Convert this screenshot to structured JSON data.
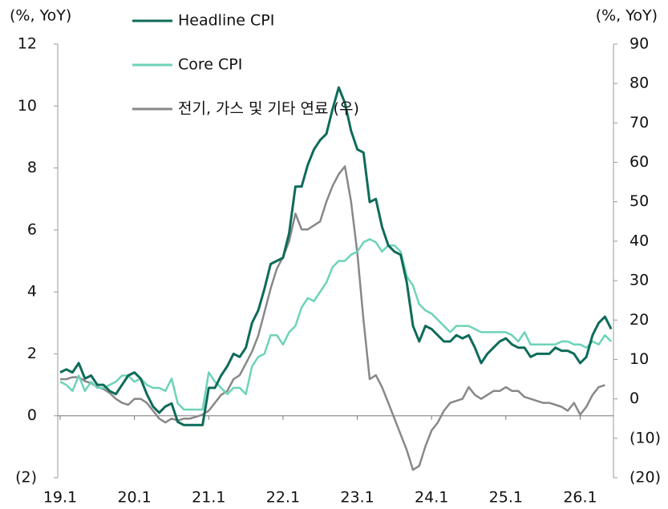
{
  "chart_data": {
    "type": "line",
    "y_axis_label": "(%, YoY)",
    "y2_axis_label": "(%, YoY)",
    "categories": [
      "19.1",
      null,
      null,
      null,
      null,
      null,
      null,
      null,
      null,
      null,
      null,
      null,
      "20.1",
      null,
      null,
      null,
      null,
      null,
      null,
      null,
      null,
      null,
      null,
      null,
      "21.1",
      null,
      null,
      null,
      null,
      null,
      null,
      null,
      null,
      null,
      null,
      null,
      "22.1",
      null,
      null,
      null,
      null,
      null,
      null,
      null,
      null,
      null,
      null,
      null,
      "23.1",
      null,
      null,
      null,
      null,
      null,
      null,
      null,
      null,
      null,
      null,
      null,
      "24.1",
      null,
      null,
      null,
      null,
      null,
      null,
      null,
      null,
      null,
      null,
      null,
      "25.1",
      null,
      null,
      null,
      null,
      null,
      null,
      null,
      null,
      null,
      null,
      null,
      "26.1",
      null,
      null,
      null,
      null,
      null
    ],
    "series": [
      {
        "name": "Headline CPI",
        "color": "#0e6b5a",
        "values": [
          1.4,
          1.5,
          1.4,
          1.7,
          1.2,
          1.3,
          1.0,
          1.0,
          0.8,
          0.7,
          1.0,
          1.3,
          1.4,
          1.2,
          0.7,
          0.3,
          0.1,
          0.3,
          0.4,
          -0.2,
          -0.3,
          -0.3,
          -0.3,
          -0.3,
          0.9,
          0.9,
          1.3,
          1.6,
          2.0,
          1.9,
          2.2,
          3.0,
          3.4,
          4.1,
          4.9,
          5.0,
          5.1,
          5.9,
          7.4,
          7.4,
          8.1,
          8.6,
          8.9,
          9.1,
          9.9,
          10.6,
          10.1,
          9.2,
          8.6,
          8.5,
          6.9,
          7.0,
          6.1,
          5.5,
          5.3,
          5.2,
          4.3,
          2.9,
          2.4,
          2.9,
          2.8,
          2.6,
          2.4,
          2.4,
          2.6,
          2.5,
          2.6,
          2.2,
          1.7,
          2.0,
          2.2,
          2.4,
          2.5,
          2.3,
          2.2,
          2.2,
          1.9,
          2.0,
          2.0,
          2.0,
          2.2,
          2.1,
          2.1,
          2.0,
          1.7,
          1.9,
          2.6,
          3.0,
          3.2,
          2.8
        ]
      },
      {
        "name": "Core CPI",
        "color": "#6dd3b8",
        "values": [
          1.1,
          1.0,
          0.8,
          1.3,
          0.8,
          1.1,
          0.9,
          0.9,
          1.0,
          1.1,
          1.3,
          1.3,
          1.1,
          1.2,
          1.0,
          0.9,
          0.9,
          0.8,
          1.2,
          0.4,
          0.2,
          0.2,
          0.2,
          0.2,
          1.4,
          1.1,
          0.9,
          0.7,
          0.9,
          0.9,
          0.7,
          1.6,
          1.9,
          2.0,
          2.6,
          2.6,
          2.3,
          2.7,
          2.9,
          3.5,
          3.8,
          3.7,
          4.0,
          4.3,
          4.8,
          5.0,
          5.0,
          5.2,
          5.3,
          5.6,
          5.7,
          5.6,
          5.3,
          5.5,
          5.5,
          5.3,
          4.5,
          4.2,
          3.6,
          3.4,
          3.3,
          3.1,
          2.9,
          2.7,
          2.9,
          2.9,
          2.9,
          2.8,
          2.7,
          2.7,
          2.7,
          2.7,
          2.7,
          2.6,
          2.4,
          2.7,
          2.3,
          2.3,
          2.3,
          2.3,
          2.3,
          2.4,
          2.4,
          2.3,
          2.3,
          2.2,
          2.4,
          2.3,
          2.6,
          2.4
        ]
      },
      {
        "name": "전기, 가스 및 기타 연료 (우)",
        "color": "#888888",
        "axis": "y2",
        "values": [
          5,
          5,
          5.5,
          5.5,
          4.5,
          4,
          3,
          2.5,
          1.5,
          0,
          -1,
          -1.5,
          0,
          0,
          -1,
          -3,
          -5,
          -6,
          -5,
          -5.5,
          -5,
          -5,
          -4.5,
          -4,
          -3,
          -1,
          1,
          2,
          5,
          6,
          9,
          12,
          16,
          22,
          28,
          33,
          36,
          40,
          47,
          43,
          43,
          44,
          45,
          50,
          54,
          57,
          59,
          50,
          37,
          20,
          5,
          6,
          3,
          -1,
          -5,
          -9,
          -13,
          -18,
          -17,
          -12,
          -8,
          -6,
          -3,
          -1,
          -0.5,
          0,
          3,
          1,
          0,
          1,
          2,
          2,
          3,
          2,
          2,
          0.5,
          0,
          -0.5,
          -1,
          -1,
          -1.5,
          -2,
          -3,
          -1,
          -4,
          -2,
          1,
          3,
          3.5,
          null
        ]
      }
    ],
    "ylim": [
      -2,
      12
    ],
    "yticks": [
      {
        "value": -2,
        "label": "(2)"
      },
      0,
      2,
      4,
      6,
      8,
      10,
      12
    ],
    "y2lim": [
      -20,
      90
    ],
    "y2ticks": [
      {
        "value": -20,
        "label": "(20)"
      },
      {
        "value": -10,
        "label": "(10)"
      },
      0,
      10,
      20,
      30,
      40,
      50,
      60,
      70,
      80,
      90
    ]
  }
}
